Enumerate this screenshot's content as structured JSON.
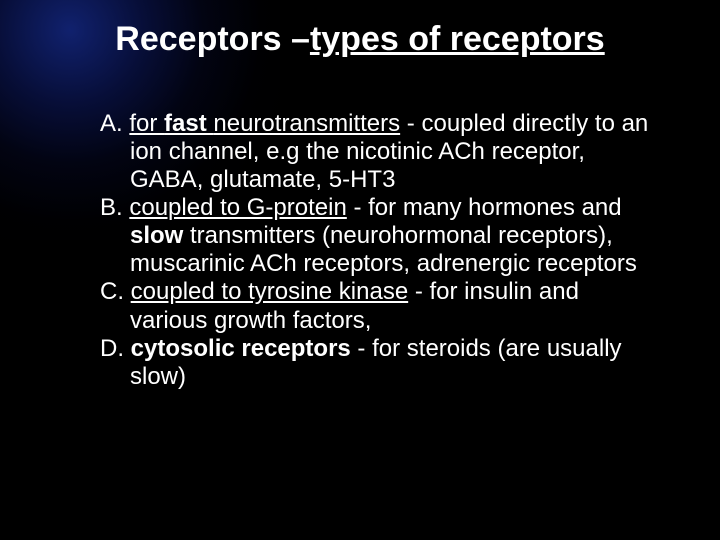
{
  "colors": {
    "background": "#000000",
    "text": "#ffffff",
    "glow_inner": "rgba(30,60,200,0.55)",
    "glow_outer": "rgba(0,0,0,0)"
  },
  "title": {
    "prefix": "Receptors –",
    "emph": "types of receptors",
    "fontsize": 34,
    "fontweight": "bold"
  },
  "body": {
    "fontsize": 24,
    "items": [
      {
        "lead_pre": "A. ",
        "lead_u": "for ",
        "lead_bu": "fast ",
        "lead_u2": " neurotransmitters",
        "rest": " -  coupled directly to an ion channel, e.g the nicotinic ACh receptor, GABA, glutamate, 5-HT3"
      },
      {
        "lead_pre": "B. ",
        "lead_u": "coupled to G-protein",
        "rest_pre": " - for many hormones  and ",
        "bold_mid": "slow ",
        "rest": "transmitters (neurohormonal receptors), muscarinic ACh receptors, adrenergic receptors"
      },
      {
        "lead_pre": "C. ",
        "lead_u": "coupled to tyrosine kinase",
        "rest": " - for insulin  and various  growth factors,"
      },
      {
        "lead_pre": "D. ",
        "lead_bold": "cytosolic receptors",
        "rest": " - for steroids  (are usually slow)"
      }
    ]
  }
}
